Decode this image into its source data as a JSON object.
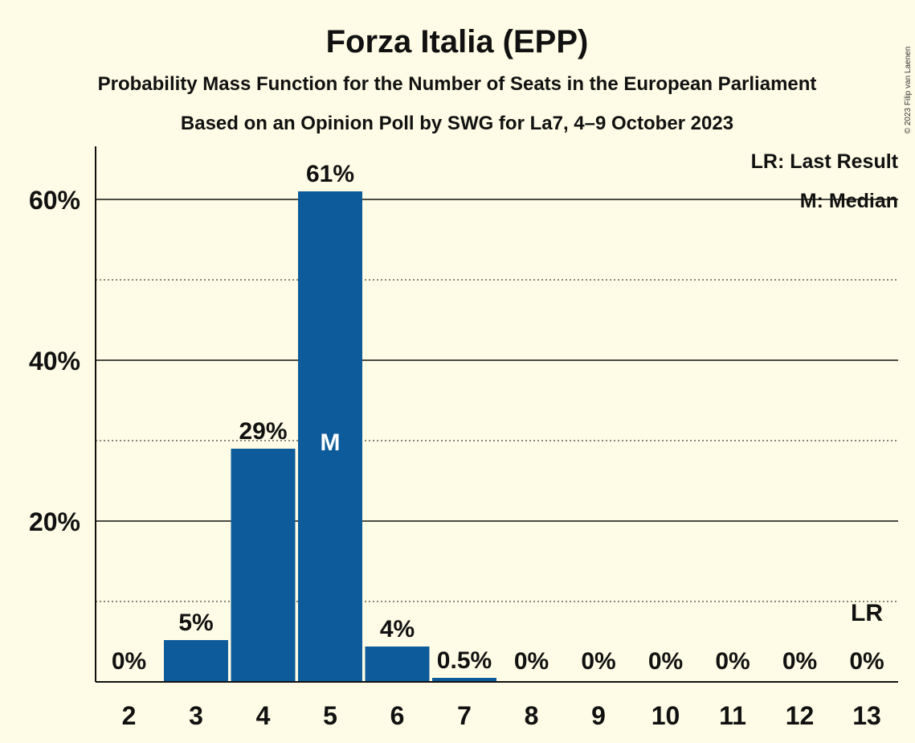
{
  "chart_data": {
    "type": "bar",
    "title": "Forza Italia (EPP)",
    "subtitle": "Probability Mass Function for the Number of Seats in the European Parliament",
    "subtitle2": "Based on an Opinion Poll by SWG for La7, 4–9 October 2023",
    "categories": [
      "2",
      "3",
      "4",
      "5",
      "6",
      "7",
      "8",
      "9",
      "10",
      "11",
      "12",
      "13"
    ],
    "values": [
      0,
      5.2,
      29,
      61,
      4.4,
      0.5,
      0,
      0,
      0,
      0,
      0,
      0
    ],
    "value_labels": [
      "0%",
      "5%",
      "29%",
      "61%",
      "4%",
      "0.5%",
      "0%",
      "0%",
      "0%",
      "0%",
      "0%",
      "0%"
    ],
    "ylim": [
      0,
      66
    ],
    "yticks": [
      20,
      40,
      60
    ],
    "ytick_labels": [
      "20%",
      "40%",
      "60%"
    ],
    "minor_gridlines": [
      10,
      30,
      50
    ],
    "median_category": "5",
    "median_marker": "M",
    "last_result_category": "13",
    "last_result_marker": "LR",
    "legend": [
      "LR: Last Result",
      "M: Median"
    ],
    "legend_position": "top-right",
    "bar_color": "#0d5b9a",
    "copyright": "© 2023 Filip van Laenen"
  }
}
